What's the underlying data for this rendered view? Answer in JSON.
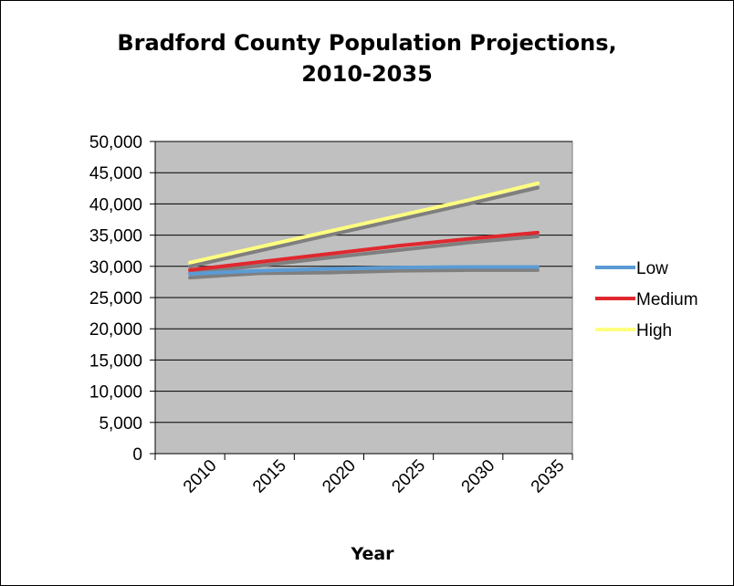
{
  "chart_data": {
    "type": "line",
    "title_line1": "Bradford County Population Projections,",
    "title_line2": "2010-2035",
    "xlabel": "Year",
    "ylabel": "",
    "ylim": [
      0,
      50000
    ],
    "yticks": [
      "0",
      "5,000",
      "10,000",
      "15,000",
      "20,000",
      "25,000",
      "30,000",
      "35,000",
      "40,000",
      "45,000",
      "50,000"
    ],
    "categories": [
      "2010",
      "2015",
      "2020",
      "2025",
      "2030",
      "2035"
    ],
    "series": [
      {
        "name": "Low",
        "color": "#5b9bd5",
        "values": [
          28800,
          29300,
          29600,
          29800,
          29900,
          29900
        ]
      },
      {
        "name": "Medium",
        "color": "#e0282e",
        "values": [
          29400,
          30700,
          32000,
          33300,
          34400,
          35400
        ]
      },
      {
        "name": "High",
        "color": "#ffff80",
        "values": [
          30600,
          33100,
          35600,
          38100,
          40600,
          43300
        ]
      }
    ],
    "trendlines": [
      {
        "series": "Low",
        "color": "#7f7f7f",
        "values": [
          28200,
          28900,
          29000,
          29300,
          29400,
          29400
        ]
      },
      {
        "series": "Medium",
        "color": "#7f7f7f",
        "values": [
          28900,
          30100,
          31400,
          32600,
          33800,
          34800
        ]
      },
      {
        "series": "High",
        "color": "#7f7f7f",
        "values": [
          30000,
          32500,
          35000,
          37500,
          40000,
          42600
        ]
      }
    ],
    "grid": true,
    "legend": "right"
  }
}
